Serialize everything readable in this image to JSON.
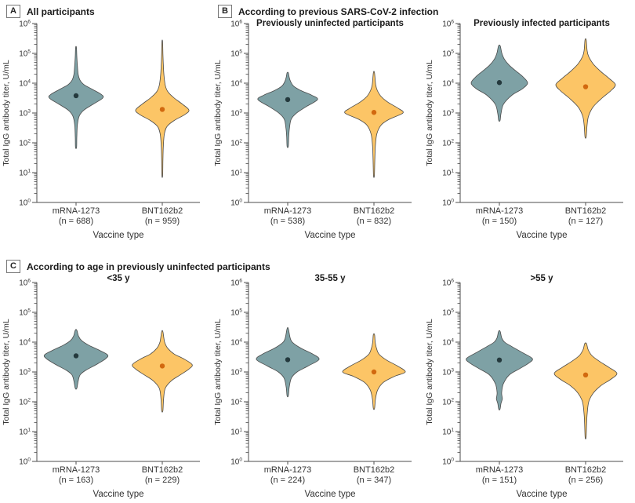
{
  "figure": {
    "panels": [
      {
        "label": "A",
        "title": "All participants"
      },
      {
        "label": "B",
        "title": "According to previous SARS-CoV-2 infection"
      },
      {
        "label": "C",
        "title": "According to age in previously uninfected participants"
      }
    ]
  },
  "axes": {
    "y_label": "Total IgG antibody titer, U/mL",
    "x_label": "Vaccine type",
    "y_scale": "log10",
    "y_tick_exponents": [
      0,
      1,
      2,
      3,
      4,
      5,
      6
    ]
  },
  "colors": {
    "teal": "#7ea1a5",
    "orange": "#fcc566",
    "teal_dot": "#24393d",
    "orange_dot": "#d2690f",
    "violin_stroke": "#4a4a4a",
    "axis": "#4d4d4d",
    "text": "#333333"
  },
  "chart_data": [
    {
      "type": "violin",
      "panel": "A",
      "subtitle": "",
      "categories": [
        {
          "label": "mRNA-1273",
          "n_label": "(n = 688)"
        },
        {
          "label": "BNT162b2",
          "n_label": "(n = 959)"
        }
      ],
      "violins": [
        {
          "group": "mRNA-1273",
          "color": "teal",
          "median_log10": 3.58,
          "approx_median_titer": 3800,
          "max_halfwidth": 34,
          "profile": [
            [
              1.85,
              0.02
            ],
            [
              2.2,
              0.03
            ],
            [
              2.6,
              0.05
            ],
            [
              2.9,
              0.12
            ],
            [
              3.1,
              0.3
            ],
            [
              3.3,
              0.65
            ],
            [
              3.5,
              1.0
            ],
            [
              3.62,
              0.95
            ],
            [
              3.8,
              0.6
            ],
            [
              3.95,
              0.3
            ],
            [
              4.1,
              0.15
            ],
            [
              4.3,
              0.08
            ],
            [
              4.6,
              0.05
            ],
            [
              4.9,
              0.03
            ],
            [
              5.2,
              0.015
            ]
          ]
        },
        {
          "group": "BNT162b2",
          "color": "orange",
          "median_log10": 3.12,
          "approx_median_titer": 1300,
          "max_halfwidth": 34,
          "profile": [
            [
              0.9,
              0.015
            ],
            [
              1.4,
              0.025
            ],
            [
              1.9,
              0.04
            ],
            [
              2.3,
              0.08
            ],
            [
              2.55,
              0.18
            ],
            [
              2.75,
              0.45
            ],
            [
              2.95,
              0.85
            ],
            [
              3.1,
              1.0
            ],
            [
              3.3,
              0.75
            ],
            [
              3.5,
              0.45
            ],
            [
              3.7,
              0.22
            ],
            [
              3.9,
              0.12
            ],
            [
              4.2,
              0.07
            ],
            [
              4.6,
              0.04
            ],
            [
              5.0,
              0.025
            ],
            [
              5.4,
              0.012
            ]
          ]
        }
      ]
    },
    {
      "type": "violin",
      "panel": "B",
      "subtitle": "Previously uninfected participants",
      "categories": [
        {
          "label": "mRNA-1273",
          "n_label": "(n = 538)"
        },
        {
          "label": "BNT162b2",
          "n_label": "(n = 832)"
        }
      ],
      "violins": [
        {
          "group": "mRNA-1273",
          "color": "teal",
          "median_log10": 3.45,
          "approx_median_titer": 2800,
          "max_halfwidth": 38,
          "profile": [
            [
              1.88,
              0.02
            ],
            [
              2.2,
              0.035
            ],
            [
              2.5,
              0.06
            ],
            [
              2.8,
              0.12
            ],
            [
              3.0,
              0.3
            ],
            [
              3.2,
              0.6
            ],
            [
              3.45,
              1.0
            ],
            [
              3.6,
              0.8
            ],
            [
              3.75,
              0.45
            ],
            [
              3.9,
              0.2
            ],
            [
              4.05,
              0.1
            ],
            [
              4.2,
              0.05
            ],
            [
              4.35,
              0.02
            ]
          ]
        },
        {
          "group": "BNT162b2",
          "color": "orange",
          "median_log10": 3.02,
          "approx_median_titer": 1050,
          "max_halfwidth": 37,
          "profile": [
            [
              0.9,
              0.015
            ],
            [
              1.4,
              0.03
            ],
            [
              1.9,
              0.05
            ],
            [
              2.3,
              0.1
            ],
            [
              2.6,
              0.25
            ],
            [
              2.8,
              0.55
            ],
            [
              3.0,
              1.0
            ],
            [
              3.15,
              0.85
            ],
            [
              3.35,
              0.5
            ],
            [
              3.55,
              0.25
            ],
            [
              3.75,
              0.12
            ],
            [
              3.95,
              0.06
            ],
            [
              4.35,
              0.02
            ]
          ]
        }
      ]
    },
    {
      "type": "violin",
      "panel": "B",
      "subtitle": "Previously infected participants",
      "categories": [
        {
          "label": "mRNA-1273",
          "n_label": "(n = 150)"
        },
        {
          "label": "BNT162b2",
          "n_label": "(n = 127)"
        }
      ],
      "violins": [
        {
          "group": "mRNA-1273",
          "color": "teal",
          "median_log10": 4.02,
          "approx_median_titer": 10500,
          "max_halfwidth": 36,
          "profile": [
            [
              2.75,
              0.025
            ],
            [
              3.0,
              0.06
            ],
            [
              3.3,
              0.15
            ],
            [
              3.6,
              0.45
            ],
            [
              3.8,
              0.8
            ],
            [
              4.0,
              1.0
            ],
            [
              4.2,
              0.85
            ],
            [
              4.4,
              0.6
            ],
            [
              4.6,
              0.35
            ],
            [
              4.8,
              0.18
            ],
            [
              5.0,
              0.09
            ],
            [
              5.25,
              0.03
            ]
          ]
        },
        {
          "group": "BNT162b2",
          "color": "orange",
          "median_log10": 3.88,
          "approx_median_titer": 7600,
          "max_halfwidth": 38,
          "profile": [
            [
              2.2,
              0.02
            ],
            [
              2.6,
              0.05
            ],
            [
              2.9,
              0.1
            ],
            [
              3.2,
              0.25
            ],
            [
              3.5,
              0.55
            ],
            [
              3.75,
              0.85
            ],
            [
              3.95,
              1.0
            ],
            [
              4.15,
              0.8
            ],
            [
              4.4,
              0.5
            ],
            [
              4.65,
              0.25
            ],
            [
              4.9,
              0.1
            ],
            [
              5.1,
              0.05
            ],
            [
              5.45,
              0.02
            ]
          ]
        }
      ]
    },
    {
      "type": "violin",
      "panel": "C",
      "subtitle": "<35 y",
      "categories": [
        {
          "label": "mRNA-1273",
          "n_label": "(n = 163)"
        },
        {
          "label": "BNT162b2",
          "n_label": "(n = 229)"
        }
      ],
      "violins": [
        {
          "group": "mRNA-1273",
          "color": "teal",
          "median_log10": 3.54,
          "approx_median_titer": 3500,
          "max_halfwidth": 40,
          "profile": [
            [
              2.45,
              0.025
            ],
            [
              2.7,
              0.07
            ],
            [
              2.9,
              0.13
            ],
            [
              3.05,
              0.3
            ],
            [
              3.25,
              0.65
            ],
            [
              3.45,
              0.95
            ],
            [
              3.58,
              1.0
            ],
            [
              3.75,
              0.7
            ],
            [
              3.9,
              0.4
            ],
            [
              4.05,
              0.18
            ],
            [
              4.2,
              0.08
            ],
            [
              4.4,
              0.025
            ]
          ]
        },
        {
          "group": "BNT162b2",
          "color": "orange",
          "median_log10": 3.2,
          "approx_median_titer": 1600,
          "max_halfwidth": 38,
          "profile": [
            [
              1.7,
              0.02
            ],
            [
              2.1,
              0.045
            ],
            [
              2.45,
              0.1
            ],
            [
              2.7,
              0.3
            ],
            [
              2.9,
              0.6
            ],
            [
              3.1,
              0.9
            ],
            [
              3.25,
              1.0
            ],
            [
              3.45,
              0.7
            ],
            [
              3.6,
              0.4
            ],
            [
              3.8,
              0.18
            ],
            [
              4.0,
              0.08
            ],
            [
              4.35,
              0.02
            ]
          ]
        }
      ]
    },
    {
      "type": "violin",
      "panel": "C",
      "subtitle": "35-55 y",
      "categories": [
        {
          "label": "mRNA-1273",
          "n_label": "(n = 224)"
        },
        {
          "label": "BNT162b2",
          "n_label": "(n = 347)"
        }
      ],
      "violins": [
        {
          "group": "mRNA-1273",
          "color": "teal",
          "median_log10": 3.41,
          "approx_median_titer": 2600,
          "max_halfwidth": 40,
          "profile": [
            [
              2.2,
              0.02
            ],
            [
              2.5,
              0.05
            ],
            [
              2.8,
              0.12
            ],
            [
              3.0,
              0.3
            ],
            [
              3.2,
              0.65
            ],
            [
              3.42,
              1.0
            ],
            [
              3.6,
              0.8
            ],
            [
              3.78,
              0.45
            ],
            [
              3.95,
              0.2
            ],
            [
              4.1,
              0.09
            ],
            [
              4.45,
              0.02
            ]
          ]
        },
        {
          "group": "BNT162b2",
          "color": "orange",
          "median_log10": 3.0,
          "approx_median_titer": 1000,
          "max_halfwidth": 40,
          "profile": [
            [
              1.78,
              0.02
            ],
            [
              2.1,
              0.05
            ],
            [
              2.4,
              0.12
            ],
            [
              2.65,
              0.3
            ],
            [
              2.85,
              0.65
            ],
            [
              3.0,
              1.0
            ],
            [
              3.2,
              0.75
            ],
            [
              3.4,
              0.4
            ],
            [
              3.6,
              0.16
            ],
            [
              3.8,
              0.08
            ],
            [
              4.0,
              0.04
            ],
            [
              4.25,
              0.02
            ]
          ]
        }
      ]
    },
    {
      "type": "violin",
      "panel": "C",
      "subtitle": ">55 y",
      "categories": [
        {
          "label": "mRNA-1273",
          "n_label": "(n = 151)"
        },
        {
          "label": "BNT162b2",
          "n_label": "(n = 256)"
        }
      ],
      "violins": [
        {
          "group": "mRNA-1273",
          "color": "teal",
          "median_log10": 3.4,
          "approx_median_titer": 2500,
          "max_halfwidth": 42,
          "profile": [
            [
              1.75,
              0.02
            ],
            [
              1.95,
              0.05
            ],
            [
              2.1,
              0.09
            ],
            [
              2.3,
              0.07
            ],
            [
              2.6,
              0.12
            ],
            [
              2.9,
              0.3
            ],
            [
              3.1,
              0.6
            ],
            [
              3.3,
              0.9
            ],
            [
              3.45,
              1.0
            ],
            [
              3.65,
              0.7
            ],
            [
              3.85,
              0.38
            ],
            [
              4.0,
              0.16
            ],
            [
              4.15,
              0.07
            ],
            [
              4.36,
              0.025
            ]
          ]
        },
        {
          "group": "BNT162b2",
          "color": "orange",
          "median_log10": 2.9,
          "approx_median_titer": 800,
          "max_halfwidth": 40,
          "profile": [
            [
              0.8,
              0.015
            ],
            [
              1.2,
              0.03
            ],
            [
              1.6,
              0.05
            ],
            [
              2.0,
              0.1
            ],
            [
              2.3,
              0.25
            ],
            [
              2.55,
              0.5
            ],
            [
              2.75,
              0.8
            ],
            [
              2.95,
              1.0
            ],
            [
              3.15,
              0.75
            ],
            [
              3.35,
              0.45
            ],
            [
              3.55,
              0.2
            ],
            [
              3.75,
              0.08
            ],
            [
              3.95,
              0.03
            ]
          ]
        }
      ]
    }
  ]
}
